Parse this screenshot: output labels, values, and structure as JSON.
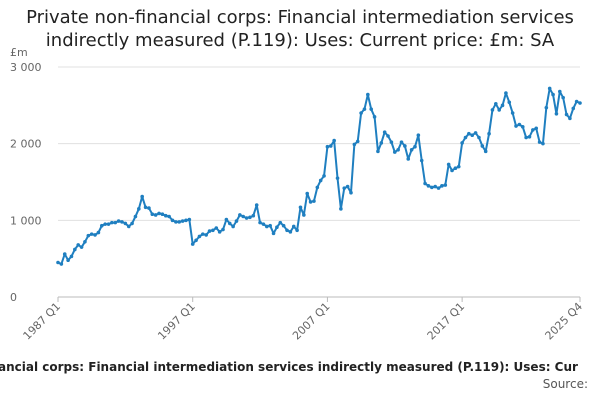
{
  "chart_data": {
    "type": "line",
    "title": "Private non-financial corps: Financial intermediation services indirectly measured (P.119): Uses: Current price: £m: SA",
    "y_label": "£m",
    "footer": "ancial corps: Financial intermediation services indirectly measured (P.119): Uses: Cur",
    "source": "Source:",
    "categories": [
      "1987 Q1",
      null,
      null,
      null,
      null,
      null,
      null,
      null,
      null,
      null,
      null,
      null,
      null,
      null,
      null,
      null,
      null,
      null,
      null,
      null,
      null,
      null,
      null,
      null,
      null,
      null,
      null,
      null,
      null,
      null,
      null,
      null,
      null,
      null,
      null,
      null,
      null,
      null,
      null,
      null,
      "1997 Q1",
      null,
      null,
      null,
      null,
      null,
      null,
      null,
      null,
      null,
      null,
      null,
      null,
      null,
      null,
      null,
      null,
      null,
      null,
      null,
      null,
      null,
      null,
      null,
      null,
      null,
      null,
      null,
      null,
      null,
      null,
      null,
      null,
      null,
      null,
      null,
      null,
      null,
      null,
      null,
      "2007 Q1",
      null,
      null,
      null,
      null,
      null,
      null,
      null,
      null,
      null,
      null,
      null,
      null,
      null,
      null,
      null,
      null,
      null,
      null,
      null,
      null,
      null,
      null,
      null,
      null,
      null,
      null,
      null,
      null,
      null,
      null,
      null,
      null,
      null,
      null,
      null,
      null,
      null,
      null,
      null,
      "2017 Q1",
      null,
      null,
      null,
      null,
      null,
      null,
      null,
      null,
      null,
      null,
      null,
      null,
      null,
      null,
      null,
      null,
      null,
      null,
      null,
      null,
      null,
      null,
      null,
      null,
      null,
      null,
      null,
      null,
      null,
      null,
      null,
      null,
      null,
      null,
      "2025 Q4"
    ],
    "values": [
      450,
      430,
      560,
      480,
      530,
      620,
      680,
      650,
      720,
      800,
      820,
      810,
      840,
      930,
      950,
      950,
      970,
      970,
      990,
      980,
      960,
      920,
      960,
      1050,
      1150,
      1310,
      1170,
      1160,
      1080,
      1070,
      1090,
      1080,
      1060,
      1050,
      1000,
      980,
      980,
      990,
      1000,
      1010,
      690,
      740,
      790,
      820,
      810,
      860,
      870,
      900,
      850,
      880,
      1010,
      960,
      920,
      990,
      1070,
      1050,
      1030,
      1040,
      1060,
      1200,
      970,
      950,
      920,
      930,
      830,
      910,
      970,
      930,
      870,
      850,
      920,
      870,
      1170,
      1070,
      1350,
      1240,
      1250,
      1430,
      1520,
      1580,
      1960,
      1970,
      2040,
      1550,
      1150,
      1420,
      1440,
      1360,
      1990,
      2030,
      2400,
      2450,
      2640,
      2450,
      2350,
      1900,
      2010,
      2150,
      2100,
      2020,
      1890,
      1920,
      2020,
      1970,
      1800,
      1920,
      1960,
      2110,
      1780,
      1480,
      1450,
      1430,
      1440,
      1420,
      1450,
      1460,
      1730,
      1650,
      1680,
      1700,
      2010,
      2080,
      2130,
      2110,
      2140,
      2080,
      1970,
      1900,
      2130,
      2440,
      2520,
      2440,
      2500,
      2660,
      2540,
      2400,
      2230,
      2250,
      2220,
      2080,
      2090,
      2180,
      2200,
      2020,
      2000,
      2470,
      2720,
      2640,
      2390,
      2680,
      2600,
      2380,
      2330,
      2460,
      2550,
      2530
    ],
    "color": "#1f7fc0",
    "ylim": [
      0,
      3000
    ],
    "yticks": [
      0,
      {
        "value": 1000,
        "label": "1 000"
      },
      {
        "value": 2000,
        "label": "2 000"
      },
      {
        "value": 3000,
        "label": "3 000"
      }
    ],
    "grid": true
  }
}
